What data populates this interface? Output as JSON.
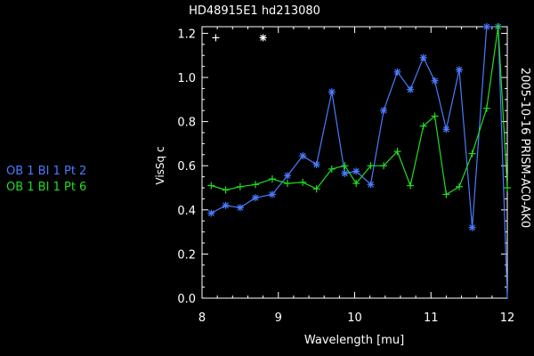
{
  "chart_data": {
    "type": "line",
    "title": "HD48915E1 hd213080",
    "xlabel": "Wavelength [mu]",
    "ylabel": "VisSq c",
    "side_label": "2005-10-16 PRISM-AC0-AK0",
    "xlim": [
      8,
      12
    ],
    "ylim": [
      0,
      1.23
    ],
    "x_ticks": [
      8,
      9,
      10,
      11,
      12
    ],
    "y_ticks": [
      0.0,
      0.2,
      0.4,
      0.6,
      0.8,
      1.0,
      1.2
    ],
    "x_tick_labels": [
      "8",
      "9",
      "10",
      "11",
      "12"
    ],
    "y_tick_labels": [
      "0.0",
      "0.2",
      "0.4",
      "0.6",
      "0.8",
      "1.0",
      "1.2"
    ],
    "grid": false,
    "legend_position": "left",
    "legend_markers": [
      {
        "symbol": "+",
        "x": 8.18,
        "y": 1.18,
        "color": "#ffffff"
      },
      {
        "symbol": "*",
        "x": 8.8,
        "y": 1.18,
        "color": "#ffffff"
      }
    ],
    "series": [
      {
        "name": "OB 1 BI 1 Pt 2",
        "color": "#4b7bff",
        "marker": "*",
        "x": [
          8.12,
          8.31,
          8.5,
          8.7,
          8.92,
          9.12,
          9.32,
          9.5,
          9.7,
          9.87,
          10.02,
          10.21,
          10.38,
          10.56,
          10.73,
          10.9,
          11.05,
          11.2,
          11.37,
          11.54,
          11.73,
          11.88,
          12.0
        ],
        "y": [
          0.385,
          0.42,
          0.41,
          0.455,
          0.47,
          0.555,
          0.645,
          0.605,
          0.935,
          0.565,
          0.575,
          0.515,
          0.85,
          1.025,
          0.945,
          1.09,
          0.985,
          0.765,
          1.035,
          0.32,
          1.23,
          1.23,
          0.0
        ]
      },
      {
        "name": "OB 1 BI 1 Pt 6",
        "color": "#22dd22",
        "marker": "+",
        "x": [
          8.12,
          8.31,
          8.5,
          8.7,
          8.92,
          9.12,
          9.32,
          9.5,
          9.7,
          9.87,
          10.02,
          10.21,
          10.38,
          10.56,
          10.73,
          10.9,
          11.05,
          11.2,
          11.37,
          11.54,
          11.73,
          11.88,
          12.0
        ],
        "y": [
          0.51,
          0.49,
          0.505,
          0.515,
          0.54,
          0.52,
          0.525,
          0.495,
          0.585,
          0.6,
          0.52,
          0.6,
          0.6,
          0.665,
          0.51,
          0.78,
          0.825,
          0.47,
          0.505,
          0.655,
          0.86,
          1.23,
          0.5
        ]
      }
    ]
  }
}
